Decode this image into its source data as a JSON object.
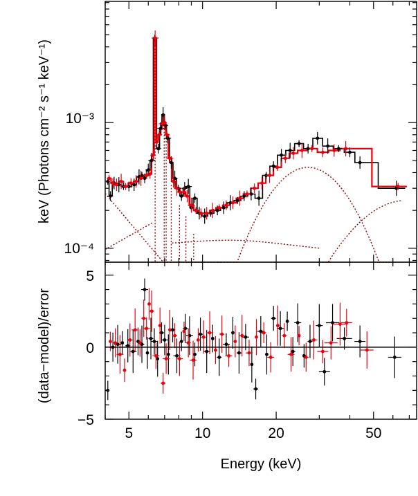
{
  "chart_data": [
    {
      "panel": "top",
      "type": "scatter",
      "xscale": "log",
      "yscale": "log",
      "xlim": [
        4.0,
        75.0
      ],
      "ylim": [
        7.75e-05,
        0.0092
      ],
      "ytick_values": [
        0.0001,
        0.001
      ],
      "ytick_labels": [
        "10⁻⁴",
        "10⁻³"
      ],
      "ylabel": "keV (Photons cm⁻² s⁻¹ keV⁻¹)",
      "series": [
        {
          "name": "spectrum-black",
          "color": "#000000",
          "points": [
            [
              4.1,
              0.00034
            ],
            [
              4.2,
              0.00026
            ],
            [
              4.35,
              0.00033
            ],
            [
              4.55,
              0.00032
            ],
            [
              4.75,
              0.00031
            ],
            [
              5.0,
              0.00031
            ],
            [
              5.25,
              0.00032
            ],
            [
              5.5,
              0.00037
            ],
            [
              5.65,
              0.00038
            ],
            [
              5.8,
              0.00036
            ],
            [
              6.0,
              0.00042
            ],
            [
              6.2,
              0.0005
            ],
            [
              6.38,
              0.0047
            ],
            [
              6.6,
              0.00062
            ],
            [
              6.75,
              0.0009
            ],
            [
              6.9,
              0.00115
            ],
            [
              7.05,
              0.00095
            ],
            [
              7.2,
              0.00075
            ],
            [
              7.45,
              0.00048
            ],
            [
              7.7,
              0.00036
            ],
            [
              7.95,
              0.0003
            ],
            [
              8.2,
              0.00026
            ],
            [
              8.45,
              0.0003
            ],
            [
              8.75,
              0.00031
            ],
            [
              9.0,
              0.00021
            ],
            [
              9.3,
              0.00025
            ],
            [
              9.7,
              0.00019
            ],
            [
              10.2,
              0.00018
            ],
            [
              10.8,
              0.00019
            ],
            [
              11.5,
              0.0002
            ],
            [
              12.2,
              0.00021
            ],
            [
              13.0,
              0.00023
            ],
            [
              13.9,
              0.00024
            ],
            [
              14.8,
              0.00026
            ],
            [
              15.8,
              0.00027
            ],
            [
              17.0,
              0.00025
            ],
            [
              18.2,
              0.00038
            ],
            [
              19.5,
              0.00045
            ],
            [
              21.0,
              0.00055
            ],
            [
              22.8,
              0.0006
            ],
            [
              24.8,
              0.00068
            ],
            [
              27.0,
              0.00062
            ],
            [
              29.5,
              0.00075
            ],
            [
              32.5,
              0.00065
            ],
            [
              36.0,
              0.00062
            ],
            [
              40.0,
              0.00058
            ],
            [
              44.0,
              0.00048
            ],
            [
              62.0,
              0.0003
            ]
          ]
        },
        {
          "name": "spectrum-red",
          "color": "#e8000c",
          "points": [
            [
              4.15,
              0.00036
            ],
            [
              4.3,
              0.00033
            ],
            [
              4.45,
              0.00032
            ],
            [
              4.65,
              0.00034
            ],
            [
              4.85,
              0.00031
            ],
            [
              5.1,
              0.00033
            ],
            [
              5.35,
              0.00034
            ],
            [
              5.6,
              0.00036
            ],
            [
              5.9,
              0.00038
            ],
            [
              6.1,
              0.00039
            ],
            [
              6.28,
              0.00055
            ],
            [
              6.4,
              0.0047
            ],
            [
              6.5,
              0.0007
            ],
            [
              6.65,
              0.0008
            ],
            [
              6.85,
              0.00098
            ],
            [
              7.0,
              0.001
            ],
            [
              7.15,
              0.0008
            ],
            [
              7.35,
              0.00052
            ],
            [
              7.6,
              0.00034
            ],
            [
              7.85,
              0.0003
            ],
            [
              8.1,
              0.00028
            ],
            [
              8.4,
              0.00028
            ],
            [
              8.65,
              0.00026
            ],
            [
              9.0,
              0.00022
            ],
            [
              9.4,
              0.0002
            ],
            [
              9.85,
              0.00019
            ],
            [
              10.4,
              0.00019
            ],
            [
              11.0,
              0.0002
            ],
            [
              11.7,
              0.00021
            ],
            [
              12.5,
              0.00022
            ],
            [
              13.3,
              0.00023
            ],
            [
              14.2,
              0.00025
            ],
            [
              15.2,
              0.00027
            ],
            [
              16.3,
              0.0003
            ],
            [
              17.5,
              0.00033
            ],
            [
              18.8,
              0.00038
            ],
            [
              20.2,
              0.00044
            ],
            [
              21.8,
              0.00052
            ],
            [
              23.5,
              0.00057
            ],
            [
              25.5,
              0.0006
            ],
            [
              28.0,
              0.00062
            ],
            [
              31.0,
              0.00058
            ],
            [
              34.5,
              0.0006
            ],
            [
              38.5,
              0.00062
            ],
            [
              63.0,
              0.00031
            ]
          ]
        }
      ]
    },
    {
      "panel": "bottom",
      "type": "scatter",
      "xscale": "log",
      "xlim": [
        4.0,
        75.0
      ],
      "ylim": [
        -5.0,
        5.9
      ],
      "ytick_values": [
        -5,
        0,
        5
      ],
      "ytick_labels": [
        "−5",
        "0",
        "5"
      ],
      "ylabel": "(data−model)/error",
      "xtick_values": [
        5,
        10,
        20,
        50
      ],
      "xtick_labels": [
        "5",
        "10",
        "20",
        "50"
      ],
      "xlabel": "Energy (keV)",
      "series": [
        {
          "name": "residuals-black",
          "color": "#000000",
          "points": [
            [
              4.1,
              -3.0
            ],
            [
              4.3,
              0.0
            ],
            [
              4.5,
              0.2
            ],
            [
              4.7,
              0.3
            ],
            [
              4.95,
              0.1
            ],
            [
              5.2,
              -0.3
            ],
            [
              5.45,
              0.4
            ],
            [
              5.65,
              0.2
            ],
            [
              5.8,
              4.0
            ],
            [
              5.95,
              -0.4
            ],
            [
              6.15,
              0.6
            ],
            [
              6.35,
              0.4
            ],
            [
              6.55,
              -0.8
            ],
            [
              6.8,
              1.0
            ],
            [
              7.0,
              0.5
            ],
            [
              7.25,
              -0.5
            ],
            [
              7.55,
              1.2
            ],
            [
              7.85,
              -0.6
            ],
            [
              8.2,
              0.4
            ],
            [
              8.5,
              1.3
            ],
            [
              8.85,
              0.8
            ],
            [
              9.3,
              -0.5
            ],
            [
              9.8,
              0.9
            ],
            [
              10.4,
              -0.3
            ],
            [
              11.0,
              0.6
            ],
            [
              11.7,
              -0.7
            ],
            [
              12.5,
              0.2
            ],
            [
              13.3,
              1.0
            ],
            [
              14.1,
              -0.4
            ],
            [
              15.0,
              0.7
            ],
            [
              15.9,
              -1.2
            ],
            [
              16.5,
              -2.9
            ],
            [
              17.3,
              1.1
            ],
            [
              18.3,
              -0.5
            ],
            [
              19.5,
              2.0
            ],
            [
              20.8,
              1.3
            ],
            [
              22.2,
              1.8
            ],
            [
              23.4,
              -0.3
            ],
            [
              24.5,
              1.7
            ],
            [
              26.0,
              -0.6
            ],
            [
              27.5,
              0.4
            ],
            [
              30.0,
              1.5
            ],
            [
              31.5,
              -1.7
            ],
            [
              34.0,
              1.7
            ],
            [
              38.0,
              0.6
            ],
            [
              44.0,
              0.4
            ],
            [
              61.0,
              -0.7
            ]
          ]
        },
        {
          "name": "residuals-red",
          "color": "#e8000c",
          "points": [
            [
              4.2,
              0.4
            ],
            [
              4.4,
              0.3
            ],
            [
              4.6,
              -0.5
            ],
            [
              4.8,
              -1.6
            ],
            [
              5.05,
              0.5
            ],
            [
              5.3,
              1.2
            ],
            [
              5.55,
              0.3
            ],
            [
              5.75,
              2.0
            ],
            [
              5.9,
              1.3
            ],
            [
              6.05,
              3.0
            ],
            [
              6.2,
              2.5
            ],
            [
              6.45,
              -0.6
            ],
            [
              6.7,
              1.5
            ],
            [
              6.9,
              -2.5
            ],
            [
              7.1,
              -0.8
            ],
            [
              7.35,
              1.2
            ],
            [
              7.7,
              0.8
            ],
            [
              8.05,
              -0.8
            ],
            [
              8.4,
              1.1
            ],
            [
              8.75,
              0.3
            ],
            [
              9.15,
              -0.9
            ],
            [
              9.6,
              0.5
            ],
            [
              10.1,
              0.7
            ],
            [
              10.7,
              1.0
            ],
            [
              11.3,
              -0.2
            ],
            [
              12.0,
              0.9
            ],
            [
              12.8,
              -0.6
            ],
            [
              13.6,
              0.4
            ],
            [
              14.5,
              0.8
            ],
            [
              15.5,
              -0.4
            ],
            [
              16.6,
              0.7
            ],
            [
              17.8,
              1.0
            ],
            [
              19.0,
              -0.7
            ],
            [
              20.3,
              1.5
            ],
            [
              21.6,
              0.8
            ],
            [
              23.0,
              -0.5
            ],
            [
              24.8,
              0.8
            ],
            [
              26.5,
              -0.7
            ],
            [
              28.5,
              0.5
            ],
            [
              31.0,
              -0.3
            ],
            [
              33.5,
              0.3
            ],
            [
              36.5,
              1.6
            ],
            [
              38.8,
              1.7
            ],
            [
              47.0,
              -0.2
            ]
          ]
        }
      ]
    }
  ]
}
